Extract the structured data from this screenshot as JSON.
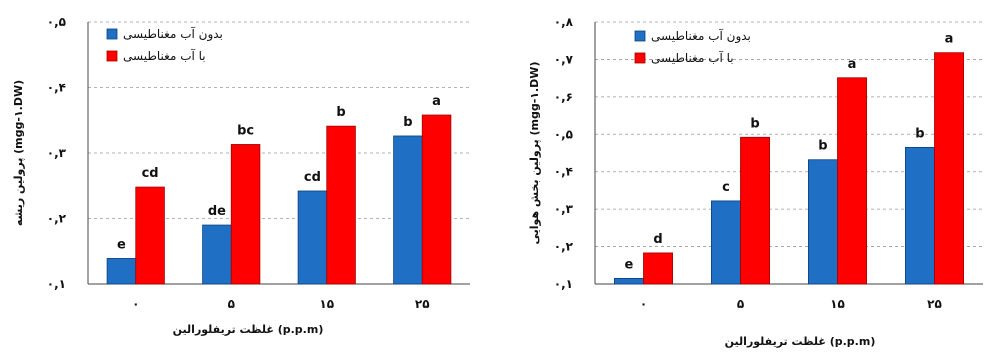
{
  "colors": {
    "series1": "#1f6fc4",
    "series1_edge": "#0d3f7a",
    "series2": "#ff0000",
    "series2_edge": "#a00000"
  },
  "chart_data": [
    {
      "type": "bar",
      "categories": [
        "۰",
        "۵",
        "۱۵",
        "۲۵"
      ],
      "ylim": [
        0.1,
        0.5
      ],
      "yticks": [
        0.1,
        0.2,
        0.3,
        0.4,
        0.5
      ],
      "ytick_labels": [
        "۰,۱",
        "۰,۲",
        "۰,۳",
        "۰,۴",
        "۰,۵"
      ],
      "ylabel": "پرولین ریشه (mgg-۱.DW)",
      "xlabel": "غلظت تریفلورالین (p.p.m)",
      "grid": true,
      "legend_position": "top-left",
      "series": [
        {
          "name": "بدون آب مغناطیسی",
          "values": [
            0.139,
            0.19,
            0.242,
            0.326
          ],
          "labels": [
            "e",
            "de",
            "cd",
            "b"
          ]
        },
        {
          "name": "با آب مغناطیسی",
          "values": [
            0.248,
            0.313,
            0.341,
            0.358
          ],
          "labels": [
            "cd",
            "bc",
            "b",
            "a"
          ]
        }
      ]
    },
    {
      "type": "bar",
      "categories": [
        "۰",
        "۵",
        "۱۵",
        "۲۵"
      ],
      "ylim": [
        0.1,
        0.8
      ],
      "yticks": [
        0.1,
        0.2,
        0.3,
        0.4,
        0.5,
        0.6,
        0.7,
        0.8
      ],
      "ytick_labels": [
        "۰,۱",
        "۰,۲",
        "۰,۳",
        "۰,۴",
        "۰,۵",
        "۰,۶",
        "۰,۷",
        "۰,۸"
      ],
      "ylabel": "پرولین بخش هوایی (mgg-۱.DW)",
      "xlabel": "غلظت تریفلورالین (p.p.m)",
      "grid": true,
      "legend_position": "top-left",
      "series": [
        {
          "name": "بدون آب مغناطیسی",
          "values": [
            0.115,
            0.322,
            0.432,
            0.465
          ],
          "labels": [
            "e",
            "c",
            "b",
            "b"
          ]
        },
        {
          "name": "با آب مغناطیسی",
          "values": [
            0.183,
            0.492,
            0.651,
            0.718
          ],
          "labels": [
            "d",
            "b",
            "a",
            "a"
          ]
        }
      ]
    }
  ]
}
